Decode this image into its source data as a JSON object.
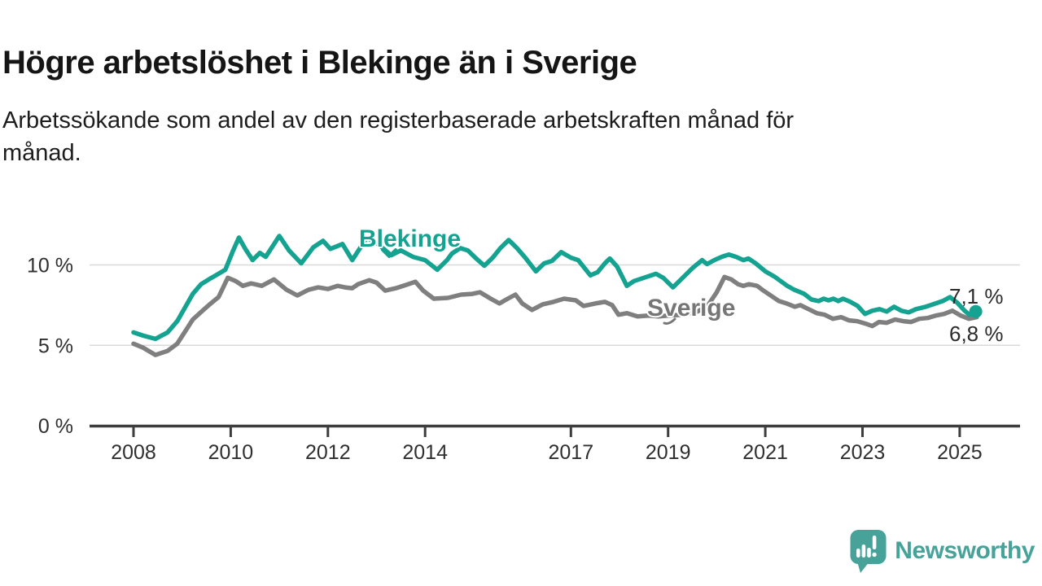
{
  "header": {
    "title": "Högre arbetslöshet i Blekinge än i Sverige",
    "subtitle_lines": [
      "Arbetssökande som andel av den registerbaserade arbetskraften månad för",
      "månad."
    ]
  },
  "colors": {
    "blekinge": "#14a291",
    "sverige": "#7f7f7f",
    "axis": "#3d3d3d",
    "grid": "#d9d9d9",
    "tick_text": "#2f2f2f",
    "value_text": "#2b2b2b",
    "logo": "#47a29a",
    "background": "#ffffff"
  },
  "chart_data": {
    "type": "line",
    "title": "Högre arbetslöshet i Blekinge än i Sverige",
    "subtitle": "Arbetssökande som andel av den registerbaserade arbetskraften månad för månad.",
    "xlabel": "",
    "ylabel": "",
    "unit": "%",
    "grid": "horizontal",
    "legend_position": "inline-labels-on-lines",
    "x_axis": {
      "range": [
        2007.1,
        2026.2
      ],
      "ticks": [
        {
          "year": 2008,
          "label": "2008"
        },
        {
          "year": 2010,
          "label": "2010"
        },
        {
          "year": 2012,
          "label": "2012"
        },
        {
          "year": 2014,
          "label": "2014"
        },
        {
          "year": 2017,
          "label": "2017"
        },
        {
          "year": 2019,
          "label": "2019"
        },
        {
          "year": 2021,
          "label": "2021"
        },
        {
          "year": 2023,
          "label": "2023"
        },
        {
          "year": 2025,
          "label": "2025"
        }
      ]
    },
    "y_axis": {
      "range": [
        0,
        12.6
      ],
      "ticks": [
        {
          "value": 0,
          "label": "0 %"
        },
        {
          "value": 5,
          "label": "5 %"
        },
        {
          "value": 10,
          "label": "10 %"
        }
      ]
    },
    "series": [
      {
        "name": "Blekinge",
        "color": "#14a291",
        "end_label": "7,1 %",
        "end_value": 7.1,
        "marker_on_last_point": true,
        "points": [
          [
            2008.0,
            5.8
          ],
          [
            2008.2,
            5.6
          ],
          [
            2008.45,
            5.4
          ],
          [
            2008.7,
            5.8
          ],
          [
            2008.9,
            6.5
          ],
          [
            2009.05,
            7.3
          ],
          [
            2009.22,
            8.2
          ],
          [
            2009.39,
            8.8
          ],
          [
            2009.55,
            9.1
          ],
          [
            2009.72,
            9.4
          ],
          [
            2009.89,
            9.7
          ],
          [
            2010.05,
            10.9
          ],
          [
            2010.17,
            11.7
          ],
          [
            2010.3,
            11.0
          ],
          [
            2010.45,
            10.3
          ],
          [
            2010.6,
            10.75
          ],
          [
            2010.72,
            10.5
          ],
          [
            2011.0,
            11.8
          ],
          [
            2011.2,
            10.9
          ],
          [
            2011.45,
            10.1
          ],
          [
            2011.7,
            11.1
          ],
          [
            2011.9,
            11.5
          ],
          [
            2012.05,
            11.0
          ],
          [
            2012.3,
            11.3
          ],
          [
            2012.5,
            10.3
          ],
          [
            2012.8,
            11.7
          ],
          [
            2013.05,
            11.25
          ],
          [
            2013.3,
            10.6
          ],
          [
            2013.5,
            10.9
          ],
          [
            2013.75,
            10.5
          ],
          [
            2014.0,
            10.3
          ],
          [
            2014.25,
            9.7
          ],
          [
            2014.45,
            10.3
          ],
          [
            2014.55,
            10.7
          ],
          [
            2014.72,
            11.05
          ],
          [
            2014.88,
            10.9
          ],
          [
            2015.05,
            10.4
          ],
          [
            2015.22,
            9.95
          ],
          [
            2015.39,
            10.45
          ],
          [
            2015.55,
            11.05
          ],
          [
            2015.72,
            11.55
          ],
          [
            2015.89,
            11.05
          ],
          [
            2016.06,
            10.45
          ],
          [
            2016.28,
            9.6
          ],
          [
            2016.45,
            10.1
          ],
          [
            2016.61,
            10.25
          ],
          [
            2016.8,
            10.8
          ],
          [
            2017.0,
            10.45
          ],
          [
            2017.15,
            10.3
          ],
          [
            2017.4,
            9.35
          ],
          [
            2017.55,
            9.55
          ],
          [
            2017.7,
            10.1
          ],
          [
            2017.8,
            10.4
          ],
          [
            2017.95,
            9.9
          ],
          [
            2018.15,
            8.7
          ],
          [
            2018.3,
            9.0
          ],
          [
            2018.5,
            9.2
          ],
          [
            2018.75,
            9.45
          ],
          [
            2018.9,
            9.2
          ],
          [
            2019.1,
            8.6
          ],
          [
            2019.3,
            9.2
          ],
          [
            2019.5,
            9.8
          ],
          [
            2019.7,
            10.3
          ],
          [
            2019.8,
            10.05
          ],
          [
            2019.95,
            10.3
          ],
          [
            2020.1,
            10.5
          ],
          [
            2020.25,
            10.65
          ],
          [
            2020.4,
            10.5
          ],
          [
            2020.55,
            10.3
          ],
          [
            2020.65,
            10.4
          ],
          [
            2020.8,
            10.1
          ],
          [
            2021.0,
            9.6
          ],
          [
            2021.2,
            9.25
          ],
          [
            2021.45,
            8.7
          ],
          [
            2021.6,
            8.45
          ],
          [
            2021.8,
            8.2
          ],
          [
            2021.95,
            7.85
          ],
          [
            2022.1,
            7.75
          ],
          [
            2022.2,
            7.9
          ],
          [
            2022.3,
            7.8
          ],
          [
            2022.4,
            7.9
          ],
          [
            2022.5,
            7.75
          ],
          [
            2022.6,
            7.9
          ],
          [
            2022.75,
            7.7
          ],
          [
            2022.9,
            7.45
          ],
          [
            2023.05,
            6.95
          ],
          [
            2023.2,
            7.15
          ],
          [
            2023.35,
            7.25
          ],
          [
            2023.5,
            7.1
          ],
          [
            2023.65,
            7.4
          ],
          [
            2023.8,
            7.15
          ],
          [
            2023.95,
            7.05
          ],
          [
            2024.1,
            7.25
          ],
          [
            2024.3,
            7.4
          ],
          [
            2024.5,
            7.6
          ],
          [
            2024.65,
            7.75
          ],
          [
            2024.8,
            8.0
          ],
          [
            2024.95,
            7.65
          ],
          [
            2025.1,
            7.15
          ],
          [
            2025.2,
            6.9
          ],
          [
            2025.33,
            7.1
          ]
        ]
      },
      {
        "name": "Sverige",
        "color": "#7f7f7f",
        "end_label": "6,8 %",
        "end_value": 6.8,
        "marker_on_last_point": false,
        "points": [
          [
            2008.0,
            5.1
          ],
          [
            2008.2,
            4.85
          ],
          [
            2008.45,
            4.4
          ],
          [
            2008.7,
            4.65
          ],
          [
            2008.9,
            5.1
          ],
          [
            2009.05,
            5.8
          ],
          [
            2009.22,
            6.6
          ],
          [
            2009.4,
            7.1
          ],
          [
            2009.55,
            7.5
          ],
          [
            2009.75,
            8.0
          ],
          [
            2009.94,
            9.2
          ],
          [
            2010.1,
            9.0
          ],
          [
            2010.25,
            8.7
          ],
          [
            2010.42,
            8.85
          ],
          [
            2010.64,
            8.7
          ],
          [
            2010.89,
            9.1
          ],
          [
            2011.15,
            8.45
          ],
          [
            2011.37,
            8.1
          ],
          [
            2011.6,
            8.45
          ],
          [
            2011.8,
            8.6
          ],
          [
            2012.0,
            8.5
          ],
          [
            2012.2,
            8.7
          ],
          [
            2012.35,
            8.6
          ],
          [
            2012.5,
            8.55
          ],
          [
            2012.62,
            8.8
          ],
          [
            2012.85,
            9.05
          ],
          [
            2013.0,
            8.9
          ],
          [
            2013.18,
            8.4
          ],
          [
            2013.4,
            8.55
          ],
          [
            2013.6,
            8.75
          ],
          [
            2013.8,
            8.95
          ],
          [
            2013.96,
            8.4
          ],
          [
            2014.18,
            7.9
          ],
          [
            2014.47,
            7.95
          ],
          [
            2014.74,
            8.15
          ],
          [
            2014.97,
            8.2
          ],
          [
            2015.13,
            8.3
          ],
          [
            2015.35,
            7.9
          ],
          [
            2015.53,
            7.6
          ],
          [
            2015.7,
            7.9
          ],
          [
            2015.86,
            8.15
          ],
          [
            2016.0,
            7.6
          ],
          [
            2016.2,
            7.2
          ],
          [
            2016.42,
            7.55
          ],
          [
            2016.64,
            7.7
          ],
          [
            2016.86,
            7.9
          ],
          [
            2017.1,
            7.8
          ],
          [
            2017.26,
            7.45
          ],
          [
            2017.5,
            7.6
          ],
          [
            2017.7,
            7.7
          ],
          [
            2017.85,
            7.5
          ],
          [
            2017.98,
            6.9
          ],
          [
            2018.15,
            7.0
          ],
          [
            2018.37,
            6.8
          ],
          [
            2018.6,
            6.85
          ],
          [
            2018.8,
            6.8
          ],
          [
            2019.0,
            6.85
          ],
          [
            2019.3,
            6.9
          ],
          [
            2019.6,
            7.1
          ],
          [
            2019.8,
            7.4
          ],
          [
            2020.0,
            8.3
          ],
          [
            2020.16,
            9.25
          ],
          [
            2020.3,
            9.1
          ],
          [
            2020.44,
            8.8
          ],
          [
            2020.55,
            8.7
          ],
          [
            2020.66,
            8.8
          ],
          [
            2020.83,
            8.7
          ],
          [
            2020.94,
            8.45
          ],
          [
            2021.11,
            8.1
          ],
          [
            2021.28,
            7.75
          ],
          [
            2021.44,
            7.6
          ],
          [
            2021.61,
            7.4
          ],
          [
            2021.72,
            7.5
          ],
          [
            2021.89,
            7.25
          ],
          [
            2022.06,
            7.0
          ],
          [
            2022.22,
            6.9
          ],
          [
            2022.39,
            6.65
          ],
          [
            2022.56,
            6.75
          ],
          [
            2022.72,
            6.55
          ],
          [
            2022.89,
            6.5
          ],
          [
            2023.06,
            6.35
          ],
          [
            2023.2,
            6.2
          ],
          [
            2023.34,
            6.45
          ],
          [
            2023.5,
            6.4
          ],
          [
            2023.67,
            6.6
          ],
          [
            2023.84,
            6.5
          ],
          [
            2024.0,
            6.45
          ],
          [
            2024.17,
            6.65
          ],
          [
            2024.34,
            6.7
          ],
          [
            2024.51,
            6.85
          ],
          [
            2024.68,
            6.95
          ],
          [
            2024.85,
            7.15
          ],
          [
            2025.02,
            6.85
          ],
          [
            2025.19,
            6.65
          ],
          [
            2025.35,
            6.75
          ]
        ]
      }
    ]
  },
  "footer": {
    "brand": "Newsworthy"
  }
}
